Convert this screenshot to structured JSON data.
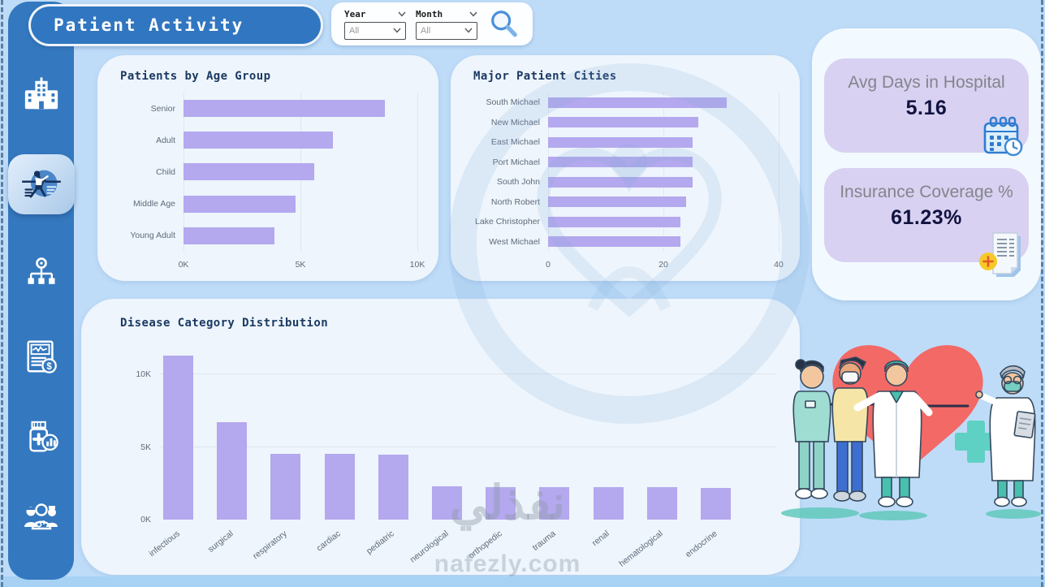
{
  "app": {
    "title": "Patient Activity"
  },
  "filters": {
    "year": {
      "label": "Year",
      "value": "All"
    },
    "month": {
      "label": "Month",
      "value": "All"
    }
  },
  "sidebar": {
    "items": [
      {
        "name": "hospital-overview",
        "icon": "hospital-building-icon",
        "active": false
      },
      {
        "name": "patient-activity",
        "icon": "patient-activity-icon",
        "active": true
      },
      {
        "name": "departments",
        "icon": "org-hierarchy-icon",
        "active": false
      },
      {
        "name": "financial-report",
        "icon": "report-finance-icon",
        "active": false
      },
      {
        "name": "pharmacy-stats",
        "icon": "medicine-stats-icon",
        "active": false
      },
      {
        "name": "medical-staff",
        "icon": "medical-team-icon",
        "active": false
      }
    ]
  },
  "kpis": [
    {
      "label": "Avg Days in Hospital",
      "value": "5.16",
      "icon": "calendar-clock-icon"
    },
    {
      "label": "Insurance Coverage %",
      "value": "61.23%",
      "icon": "insurance-document-icon"
    }
  ],
  "watermark": {
    "arabic": "نفذلي",
    "domain": "nafezly.com"
  },
  "icons": [
    "hospital-building-icon",
    "patient-activity-icon",
    "org-hierarchy-icon",
    "report-finance-icon",
    "medicine-stats-icon",
    "medical-team-icon",
    "search-icon",
    "chevron-down-icon",
    "calendar-clock-icon",
    "insurance-document-icon",
    "medical-team-illustration"
  ],
  "colors": {
    "canvas": "#bedcf8",
    "sidebar_blue": "#3478bf",
    "bar_purple": "#b4a8ee",
    "chart_card_bg": "#eef5fc",
    "kpi_card_bg": "#d8d1f1",
    "kpi_value_text": "#10123f",
    "kpi_label_text": "#84848c",
    "title_text": "#1b3a63",
    "heart_red": "#f26966",
    "medical_teal": "#5fd0c4",
    "badge_yellow": "#f7c928"
  },
  "chart_data": [
    {
      "type": "bar",
      "orientation": "horizontal",
      "title": "Patients by Age Group",
      "categories": [
        "Senior",
        "Adult",
        "Child",
        "Middle Age",
        "Young Adult"
      ],
      "values": [
        8600,
        6400,
        5600,
        4800,
        3900
      ],
      "xlabel": "",
      "ylabel": "",
      "xlim": [
        0,
        10000
      ],
      "xticks": [
        "0K",
        "5K",
        "10K"
      ],
      "xtick_values": [
        0,
        5000,
        10000
      ],
      "grid": true,
      "legend": "none"
    },
    {
      "type": "bar",
      "orientation": "horizontal",
      "title": "Major Patient Cities",
      "categories": [
        "South Michael",
        "New Michael",
        "East Michael",
        "Port Michael",
        "South John",
        "North Robert",
        "Lake Christopher",
        "West Michael"
      ],
      "values": [
        31,
        26,
        25,
        25,
        25,
        24,
        23,
        23
      ],
      "xlabel": "",
      "ylabel": "",
      "xlim": [
        0,
        40
      ],
      "xticks": [
        "0",
        "20",
        "40"
      ],
      "xtick_values": [
        0,
        20,
        40
      ],
      "grid": true,
      "legend": "none"
    },
    {
      "type": "bar",
      "orientation": "vertical",
      "title": "Disease Category Distribution",
      "categories": [
        "infectious",
        "surgical",
        "respiratory",
        "cardiac",
        "pediatric",
        "neurological",
        "orthopedic",
        "trauma",
        "renal",
        "hematological",
        "endocrine"
      ],
      "values": [
        11300,
        6700,
        4550,
        4500,
        4450,
        2300,
        2250,
        2250,
        2250,
        2250,
        2200
      ],
      "xlabel": "",
      "ylabel": "",
      "ylim": [
        0,
        11500
      ],
      "yticks": [
        "0K",
        "5K",
        "10K"
      ],
      "ytick_values": [
        0,
        5000,
        10000
      ],
      "grid": true,
      "legend": "none"
    }
  ]
}
